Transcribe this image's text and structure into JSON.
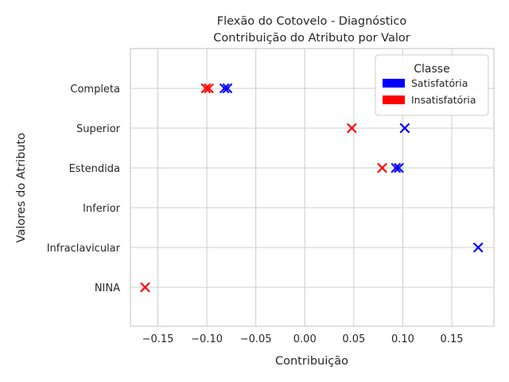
{
  "chart_data": {
    "type": "scatter",
    "title_lines": [
      "Flexão do Cotovelo - Diagnóstico",
      "Contribuição do Atributo por Valor"
    ],
    "xlabel": "Contribuição",
    "ylabel": "Valores do Atributo",
    "xlim": [
      -0.178,
      0.193
    ],
    "x_ticks": [
      -0.15,
      -0.1,
      -0.05,
      0.0,
      0.05,
      0.1,
      0.15
    ],
    "x_tick_labels": [
      "−0.15",
      "−0.10",
      "−0.05",
      "0.00",
      "0.05",
      "0.10",
      "0.15"
    ],
    "categories": [
      "Completa",
      "Superior",
      "Estendida",
      "Inferior",
      "Infraclavicular",
      "NINA"
    ],
    "grid": true,
    "marker": "x",
    "legend": {
      "title": "Classe",
      "position": "top-right",
      "entries": [
        {
          "label": "Satisfatória",
          "color": "#0000ff"
        },
        {
          "label": "Insatisfatória",
          "color": "#ff0000"
        }
      ]
    },
    "series": [
      {
        "name": "Satisfatória",
        "color": "#0000ff",
        "points": [
          {
            "x": -0.082,
            "y": "Completa"
          },
          {
            "x": -0.079,
            "y": "Completa"
          },
          {
            "x": 0.102,
            "y": "Superior"
          },
          {
            "x": 0.093,
            "y": "Estendida"
          },
          {
            "x": 0.096,
            "y": "Estendida"
          },
          {
            "x": 0.177,
            "y": "Infraclavicular"
          }
        ]
      },
      {
        "name": "Insatisfatória",
        "color": "#ff0000",
        "points": [
          {
            "x": -0.101,
            "y": "Completa"
          },
          {
            "x": -0.098,
            "y": "Completa"
          },
          {
            "x": 0.048,
            "y": "Superior"
          },
          {
            "x": 0.079,
            "y": "Estendida"
          },
          {
            "x": -0.163,
            "y": "NINA"
          }
        ]
      }
    ]
  }
}
